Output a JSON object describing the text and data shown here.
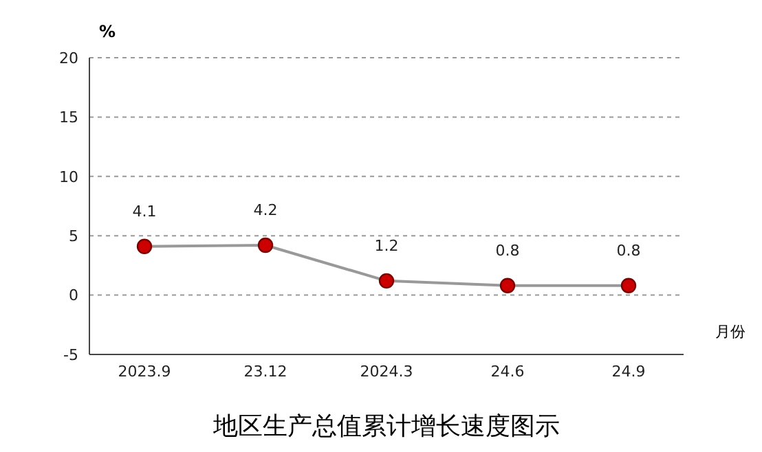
{
  "chart_data": {
    "type": "line",
    "title": "地区生产总值累计增长速度图示",
    "xlabel": "月份",
    "ylabel": "%",
    "categories": [
      "2023.9",
      "23.12",
      "2024.3",
      "24.6",
      "24.9"
    ],
    "series": [
      {
        "color": "#cc0000",
        "values": [
          4.1,
          4.2,
          1.2,
          0.8,
          0.8
        ]
      }
    ],
    "ylim": [
      -5,
      20
    ],
    "yticks": [
      -5,
      0,
      5,
      10,
      15,
      20
    ],
    "grid": "y",
    "legend": false,
    "marker": "circle",
    "line_style": "solid",
    "data_labels": true
  }
}
